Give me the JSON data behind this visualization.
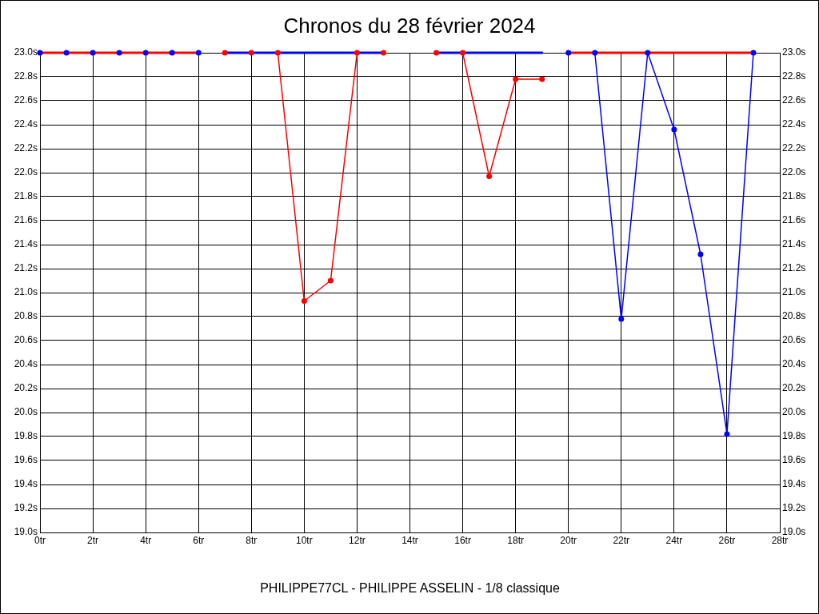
{
  "chart_data": {
    "type": "line",
    "title": "Chronos du 28 février 2024",
    "xlabel": "PHILIPPE77CL - PHILIPPE ASSELIN - 1/8 classique",
    "x": [
      0,
      1,
      2,
      3,
      4,
      5,
      6,
      7,
      8,
      9,
      10,
      11,
      12,
      13,
      14,
      15,
      16,
      17,
      18,
      19,
      20,
      21,
      22,
      23,
      24,
      25,
      26,
      27
    ],
    "series": [
      {
        "color": "#0000ff",
        "marker": "none",
        "values": [
          null,
          null,
          null,
          null,
          null,
          null,
          null,
          23,
          23,
          23,
          23,
          23,
          23,
          23,
          null,
          23,
          23,
          23,
          23,
          23,
          null,
          null,
          null,
          null,
          null,
          null,
          null,
          null
        ]
      },
      {
        "color": "#ff0000",
        "values": [
          null,
          null,
          null,
          null,
          null,
          null,
          null,
          23,
          23,
          23,
          20.93,
          21.1,
          23,
          23,
          null,
          23,
          23,
          21.97,
          22.78,
          22.78,
          null,
          null,
          null,
          null,
          null,
          null,
          null,
          null
        ]
      },
      {
        "color": "#ff0000",
        "marker": "none",
        "values": [
          23,
          23,
          23,
          23,
          23,
          23,
          23,
          null,
          null,
          null,
          null,
          null,
          null,
          null,
          null,
          null,
          null,
          null,
          null,
          null,
          23,
          23,
          23,
          23,
          23,
          23,
          23,
          23
        ]
      },
      {
        "color": "#0000ff",
        "values": [
          23,
          23,
          23,
          23,
          23,
          23,
          23,
          null,
          null,
          null,
          null,
          null,
          null,
          null,
          null,
          null,
          null,
          null,
          null,
          null,
          23,
          23,
          20.78,
          23,
          22.36,
          21.32,
          19.82,
          23
        ]
      }
    ],
    "xlim": [
      0,
      28
    ],
    "xticks": [
      {
        "value": 0,
        "label": "0tr"
      },
      {
        "value": 2,
        "label": "2tr"
      },
      {
        "value": 4,
        "label": "4tr"
      },
      {
        "value": 6,
        "label": "6tr"
      },
      {
        "value": 8,
        "label": "8tr"
      },
      {
        "value": 10,
        "label": "10tr"
      },
      {
        "value": 12,
        "label": "12tr"
      },
      {
        "value": 14,
        "label": "14tr"
      },
      {
        "value": 16,
        "label": "16tr"
      },
      {
        "value": 18,
        "label": "18tr"
      },
      {
        "value": 20,
        "label": "20tr"
      },
      {
        "value": 22,
        "label": "22tr"
      },
      {
        "value": 24,
        "label": "24tr"
      },
      {
        "value": 26,
        "label": "26tr"
      },
      {
        "value": 28,
        "label": "28tr"
      }
    ],
    "ylim": [
      19,
      23
    ],
    "yticks": [
      {
        "value": 19,
        "label": "19.0s"
      },
      {
        "value": 19.2,
        "label": "19.2s"
      },
      {
        "value": 19.4,
        "label": "19.4s"
      },
      {
        "value": 19.6,
        "label": "19.6s"
      },
      {
        "value": 19.8,
        "label": "19.8s"
      },
      {
        "value": 20,
        "label": "20.0s"
      },
      {
        "value": 20.2,
        "label": "20.2s"
      },
      {
        "value": 20.4,
        "label": "20.4s"
      },
      {
        "value": 20.6,
        "label": "20.6s"
      },
      {
        "value": 20.8,
        "label": "20.8s"
      },
      {
        "value": 21,
        "label": "21.0s"
      },
      {
        "value": 21.2,
        "label": "21.2s"
      },
      {
        "value": 21.4,
        "label": "21.4s"
      },
      {
        "value": 21.6,
        "label": "21.6s"
      },
      {
        "value": 21.8,
        "label": "21.8s"
      },
      {
        "value": 22,
        "label": "22.0s"
      },
      {
        "value": 22.2,
        "label": "22.2s"
      },
      {
        "value": 22.4,
        "label": "22.4s"
      },
      {
        "value": 22.6,
        "label": "22.6s"
      },
      {
        "value": 22.8,
        "label": "22.8s"
      },
      {
        "value": 23,
        "label": "23.0s"
      }
    ],
    "y2lim": [
      19,
      23
    ],
    "y2ticks": [
      {
        "value": 19,
        "label": "19.0s"
      },
      {
        "value": 19.2,
        "label": "19.2s"
      },
      {
        "value": 19.4,
        "label": "19.4s"
      },
      {
        "value": 19.6,
        "label": "19.6s"
      },
      {
        "value": 19.8,
        "label": "19.8s"
      },
      {
        "value": 20,
        "label": "20.0s"
      },
      {
        "value": 20.2,
        "label": "20.2s"
      },
      {
        "value": 20.4,
        "label": "20.4s"
      },
      {
        "value": 20.6,
        "label": "20.6s"
      },
      {
        "value": 20.8,
        "label": "20.8s"
      },
      {
        "value": 21,
        "label": "21.0s"
      },
      {
        "value": 21.2,
        "label": "21.2s"
      },
      {
        "value": 21.4,
        "label": "21.4s"
      },
      {
        "value": 21.6,
        "label": "21.6s"
      },
      {
        "value": 21.8,
        "label": "21.8s"
      },
      {
        "value": 22,
        "label": "22.0s"
      },
      {
        "value": 22.2,
        "label": "22.2s"
      },
      {
        "value": 22.4,
        "label": "22.4s"
      },
      {
        "value": 22.6,
        "label": "22.6s"
      },
      {
        "value": 22.8,
        "label": "22.8s"
      },
      {
        "value": 23,
        "label": "23.0s"
      }
    ],
    "grid": true,
    "marker": "circle"
  }
}
